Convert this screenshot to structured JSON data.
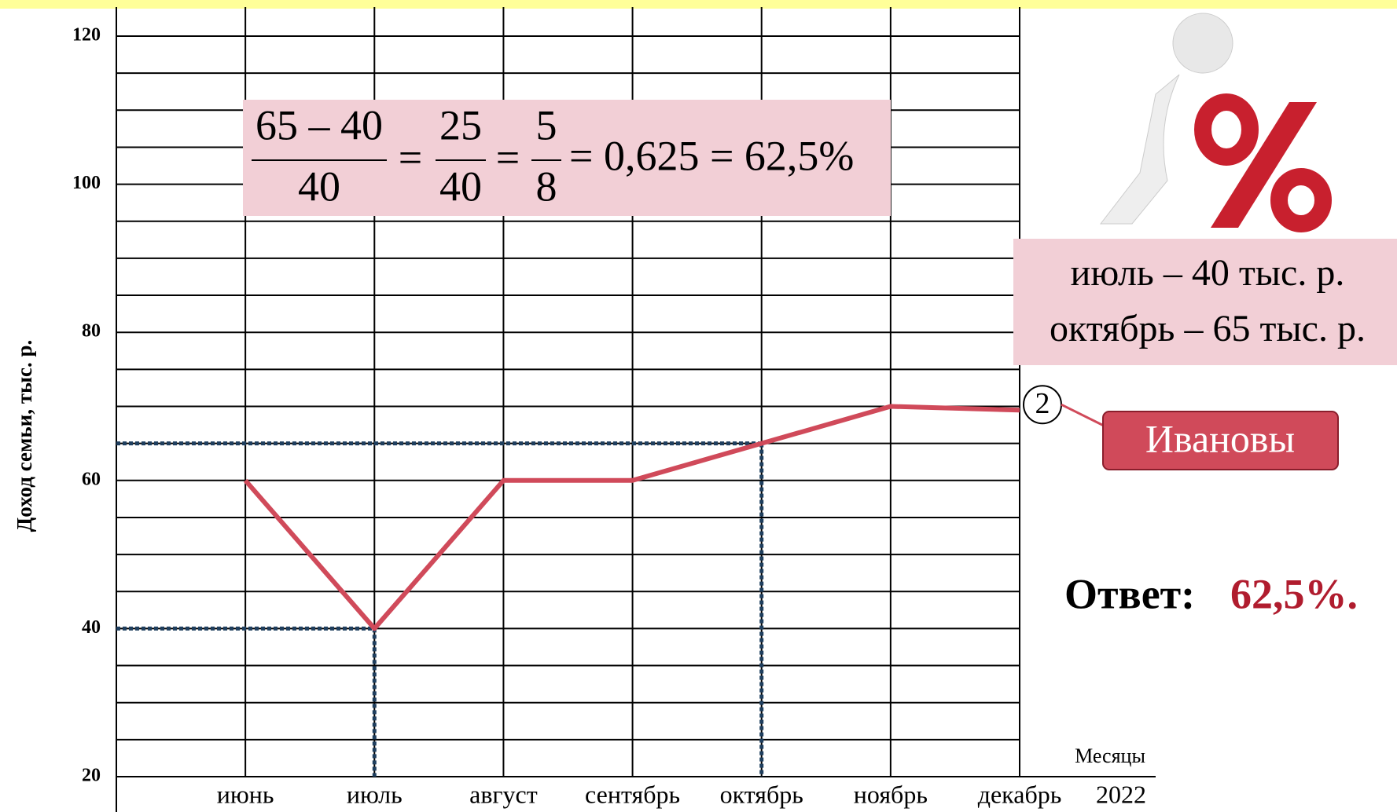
{
  "chart_data": {
    "type": "line",
    "y_label": "Доход семьи, тыс. р.",
    "x_label": "Месяцы",
    "year": "2022",
    "categories": [
      "июнь",
      "июль",
      "август",
      "сентябрь",
      "октябрь",
      "ноябрь",
      "декабрь"
    ],
    "series": [
      {
        "name": "Ивановы",
        "marker": "2",
        "color": "#d04a5a",
        "values": [
          60,
          40,
          60,
          60,
          65,
          70,
          69.5
        ]
      }
    ],
    "ylim": [
      20,
      120
    ],
    "yticks": [
      20,
      40,
      60,
      80,
      100,
      120
    ],
    "minor_yticks": [
      25,
      30,
      35,
      45,
      50,
      55,
      65,
      70,
      75,
      85,
      90,
      95,
      105,
      110,
      115
    ],
    "grid": true,
    "guides": [
      {
        "category": "июль",
        "value": 40
      },
      {
        "category": "октябрь",
        "value": 65
      }
    ],
    "formula": {
      "fractions": [
        {
          "num": "65 – 40",
          "den": "40"
        },
        {
          "num": "25",
          "den": "40"
        },
        {
          "num": "5",
          "den": "8"
        }
      ],
      "equals": [
        "=",
        "="
      ],
      "tail": "= 0,625 = 62,5%"
    },
    "info": [
      "июль – 40 тыс. р.",
      "октябрь – 65 тыс. р."
    ],
    "answer": {
      "label": "Ответ:",
      "value": "62,5%."
    }
  }
}
